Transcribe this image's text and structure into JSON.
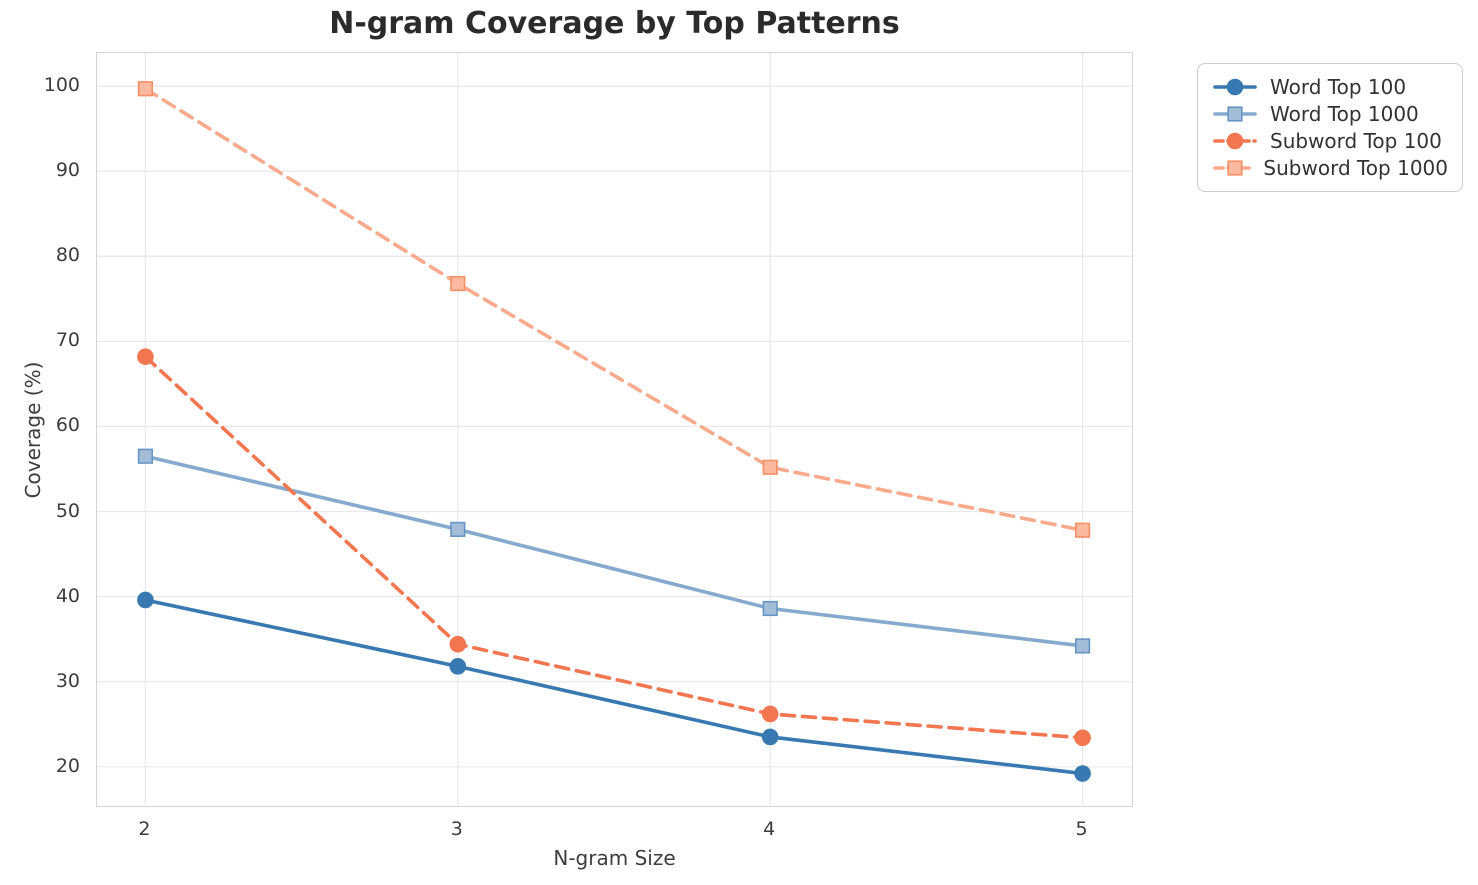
{
  "chart_data": {
    "type": "line",
    "title": "N-gram Coverage by Top Patterns",
    "xlabel": "N-gram Size",
    "ylabel": "Coverage (%)",
    "x": [
      2,
      3,
      4,
      5
    ],
    "xticks": [
      "2",
      "3",
      "4",
      "5"
    ],
    "xtick_values": [
      2,
      3,
      4,
      5
    ],
    "yticks": [
      "20",
      "30",
      "40",
      "50",
      "60",
      "70",
      "80",
      "90",
      "100"
    ],
    "ytick_values": [
      20,
      30,
      40,
      50,
      60,
      70,
      80,
      90,
      100
    ],
    "xlim": [
      1.845,
      5.155
    ],
    "ylim": [
      15.5,
      103.9
    ],
    "grid": true,
    "grid_color": "#e9e9e9",
    "spine_color": "#d4d4d4",
    "tick_text_color": "#3d3d3d",
    "title_color": "#2b2b2b",
    "legend_position": "outside upper right",
    "series": [
      {
        "id": "word-top-100",
        "name": "Word Top 100",
        "color": "#3879b1",
        "line_style": "solid",
        "marker": "circle",
        "marker_fill": "#3879b1",
        "marker_edge": "#3879b1",
        "values": [
          39.6,
          31.8,
          23.5,
          19.2
        ]
      },
      {
        "id": "word-top-1000",
        "name": "Word Top 1000",
        "color": "#85aacd",
        "line_style": "solid",
        "marker": "square",
        "marker_fill": "#a3bdd9",
        "marker_edge": "#6796c4",
        "values": [
          56.5,
          47.9,
          38.6,
          34.2
        ]
      },
      {
        "id": "subword-top-100",
        "name": "Subword Top 100",
        "color": "#f2764f",
        "line_style": "dashed",
        "marker": "circle",
        "marker_fill": "#f2764f",
        "marker_edge": "#f2764f",
        "values": [
          68.2,
          34.4,
          26.2,
          23.4
        ]
      },
      {
        "id": "subword-top-1000",
        "name": "Subword Top 1000",
        "color": "#f9a98c",
        "line_style": "dashed",
        "marker": "square",
        "marker_fill": "#fbbaa0",
        "marker_edge": "#f58f66",
        "values": [
          99.7,
          76.8,
          55.2,
          47.8
        ]
      }
    ]
  }
}
